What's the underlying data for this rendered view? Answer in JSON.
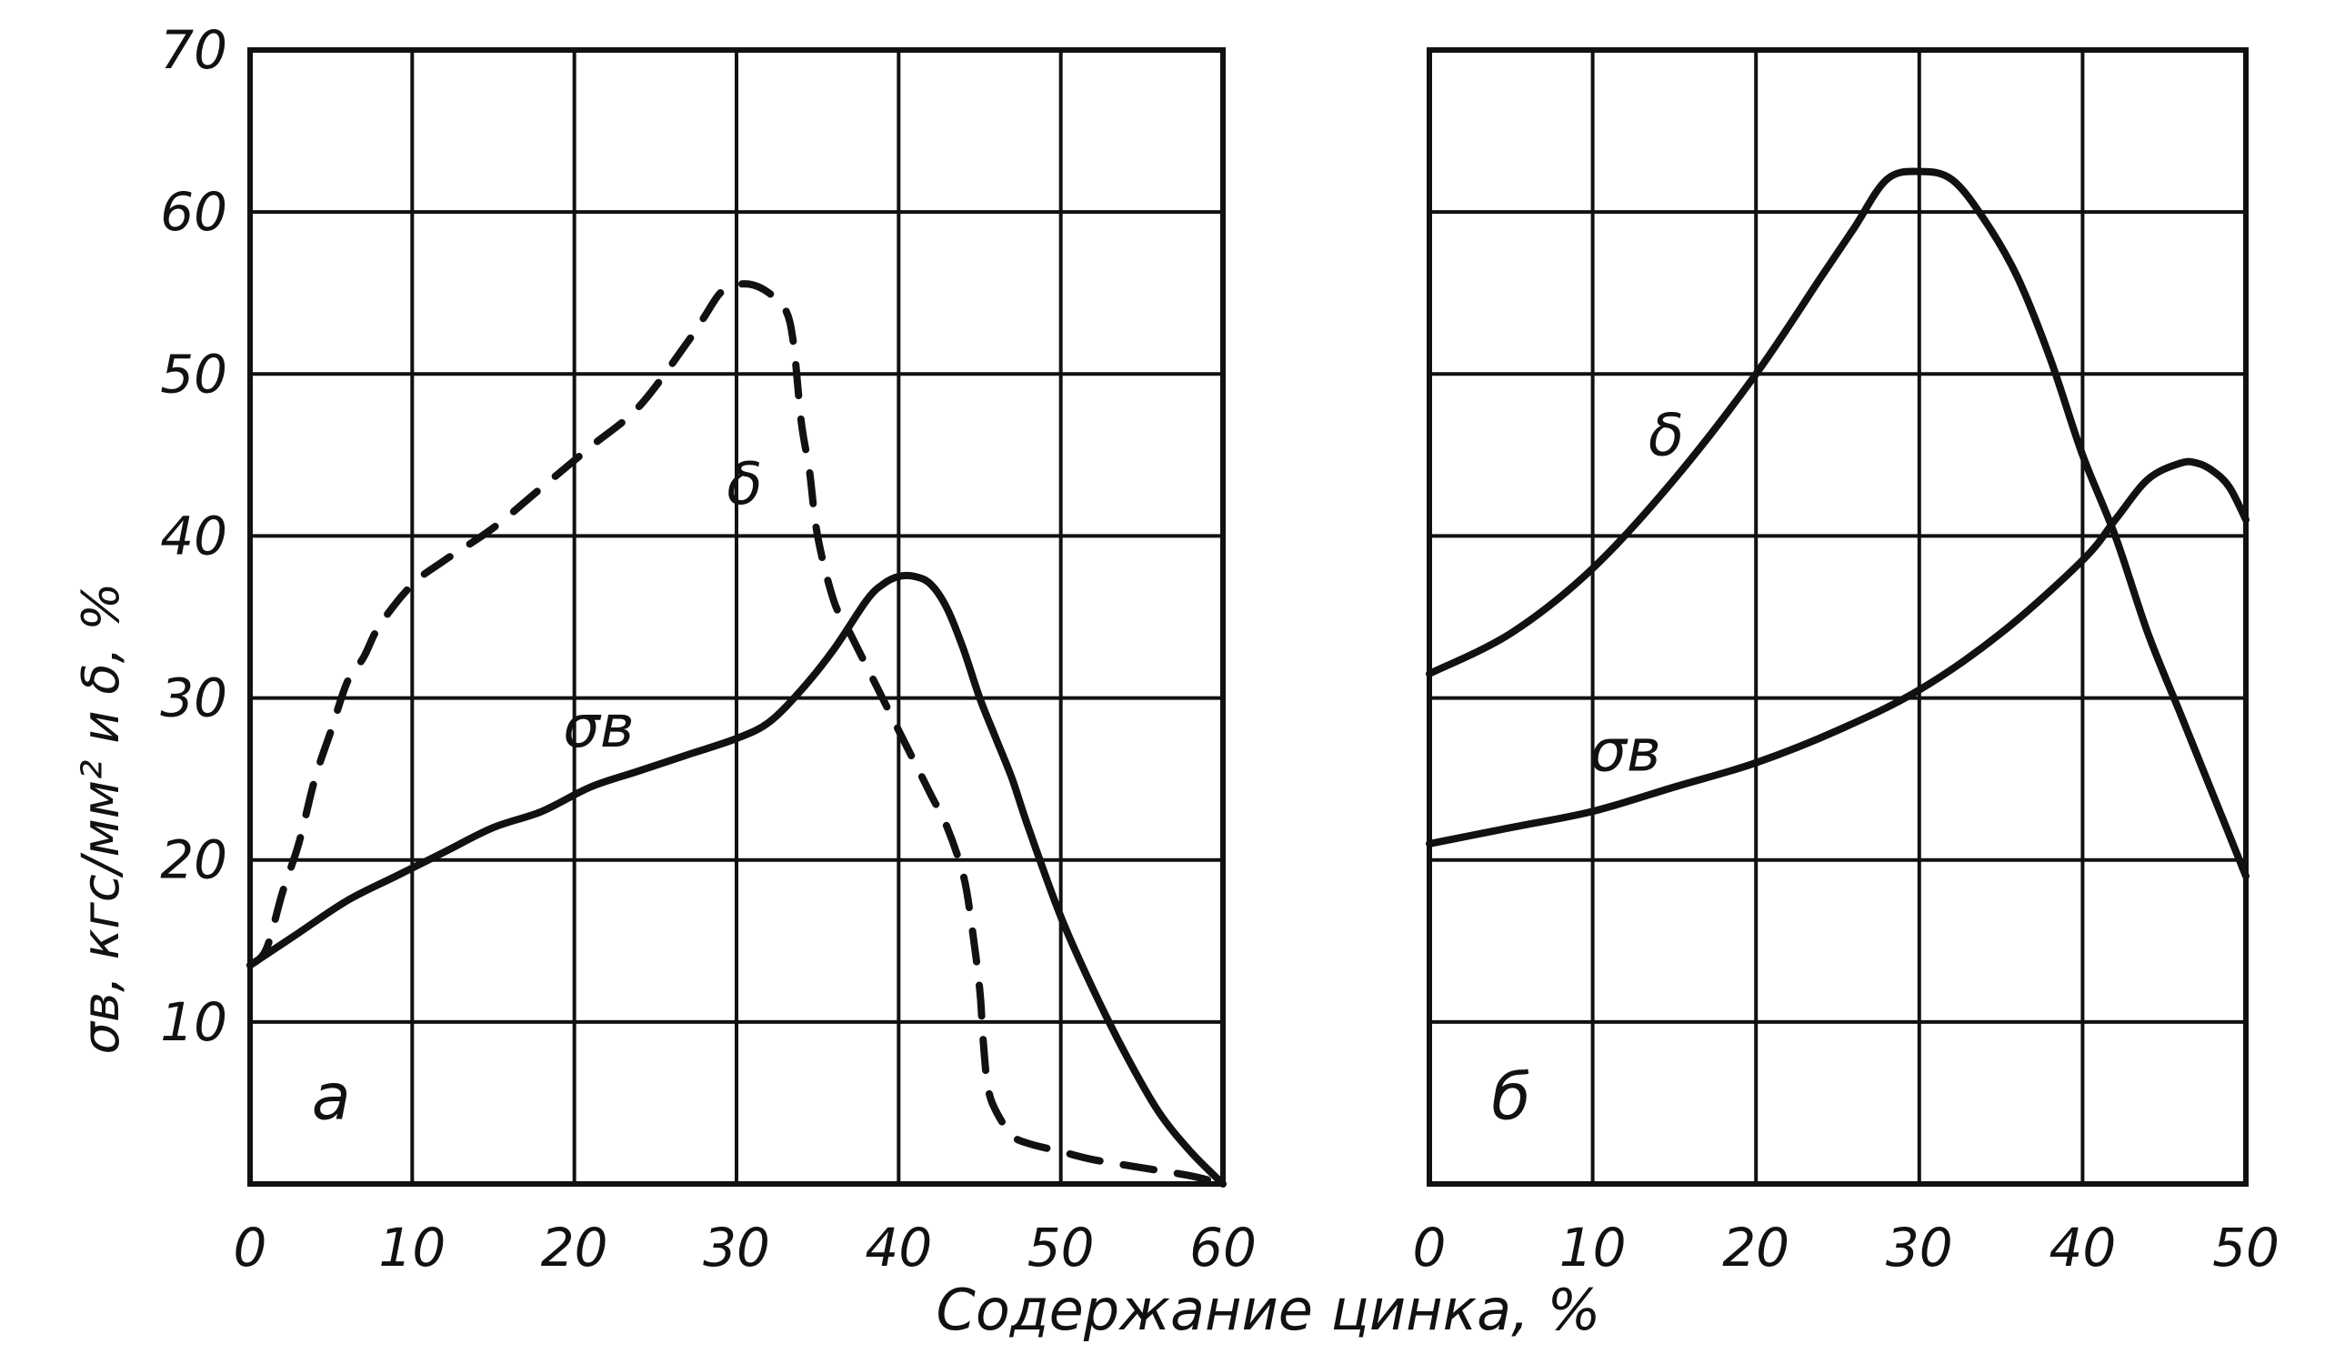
{
  "figure": {
    "xlabel": "Содержание цинка, %",
    "ylabel": "σв, кгс/мм² и δ, %"
  },
  "chart_data": [
    {
      "type": "line",
      "panel": "а",
      "xlabel": "Содержание цинка, %",
      "ylabel": "σв, кгс/мм² и δ, %",
      "xlim": [
        0,
        60
      ],
      "ylim": [
        0,
        70
      ],
      "xticks": [
        "0",
        "10",
        "20",
        "30",
        "40",
        "50",
        "60"
      ],
      "yticks": [
        "",
        "10",
        "20",
        "30",
        "40",
        "50",
        "60",
        "70"
      ],
      "grid": true,
      "series": [
        {
          "name": "δ",
          "style": "dashed",
          "x": [
            0,
            1,
            2,
            3,
            4,
            5,
            6,
            7,
            8,
            10,
            12,
            15,
            18,
            21,
            24,
            27,
            28,
            29,
            30,
            31,
            32,
            33,
            33.5,
            34,
            34.5,
            35,
            36,
            37,
            38,
            39,
            40,
            41,
            42,
            43,
            44,
            44.5,
            45,
            45.2,
            45.5,
            46,
            47,
            48,
            50,
            52,
            55,
            58,
            60
          ],
          "y": [
            13.5,
            14.5,
            18,
            21,
            25,
            28,
            31,
            32.5,
            34.5,
            37,
            38.5,
            40.5,
            43,
            45.5,
            48,
            52,
            53.5,
            55,
            55.5,
            55.5,
            55,
            54,
            52,
            47,
            44,
            40,
            36,
            34,
            32,
            30,
            28,
            26,
            24,
            22,
            19,
            16,
            12,
            9,
            6,
            4.5,
            3,
            2.5,
            2,
            1.5,
            1,
            0.5,
            0
          ]
        },
        {
          "name": "σв",
          "style": "solid",
          "x": [
            0,
            3,
            6,
            9,
            12,
            15,
            18,
            21,
            24,
            27,
            30,
            32,
            34,
            36,
            38,
            39,
            40,
            41,
            42,
            43,
            44,
            45,
            46,
            47,
            48,
            50,
            52,
            54,
            56,
            58,
            60
          ],
          "y": [
            13.5,
            15.5,
            17.5,
            19,
            20.5,
            22,
            23,
            24.5,
            25.5,
            26.5,
            27.5,
            28.5,
            30.5,
            33,
            36,
            37,
            37.5,
            37.5,
            37,
            35.5,
            33,
            30,
            27.5,
            25,
            22,
            16.5,
            12,
            8,
            4.5,
            2,
            0
          ]
        }
      ]
    },
    {
      "type": "line",
      "panel": "б",
      "xlabel": "Содержание цинка, %",
      "xlim": [
        0,
        50
      ],
      "ylim": [
        0,
        70
      ],
      "xticks": [
        "0",
        "10",
        "20",
        "30",
        "40",
        "50"
      ],
      "grid": true,
      "series": [
        {
          "name": "δ",
          "style": "solid",
          "x": [
            0,
            5,
            10,
            15,
            20,
            24,
            26,
            28,
            30,
            32,
            34,
            36,
            38,
            40,
            42,
            44,
            46,
            48,
            50
          ],
          "y": [
            31.5,
            34,
            38,
            43.5,
            50,
            56,
            59,
            62,
            62.5,
            62,
            59.5,
            56,
            51,
            45,
            40,
            34,
            29,
            24,
            19
          ]
        },
        {
          "name": "σв",
          "style": "solid",
          "x": [
            0,
            5,
            10,
            15,
            20,
            25,
            30,
            35,
            40,
            42,
            44,
            46,
            47,
            48,
            49,
            50
          ],
          "y": [
            21,
            22,
            23,
            24.5,
            26,
            28,
            30.5,
            34,
            38.5,
            41,
            43.5,
            44.5,
            44.5,
            44,
            43,
            41
          ]
        }
      ]
    }
  ]
}
